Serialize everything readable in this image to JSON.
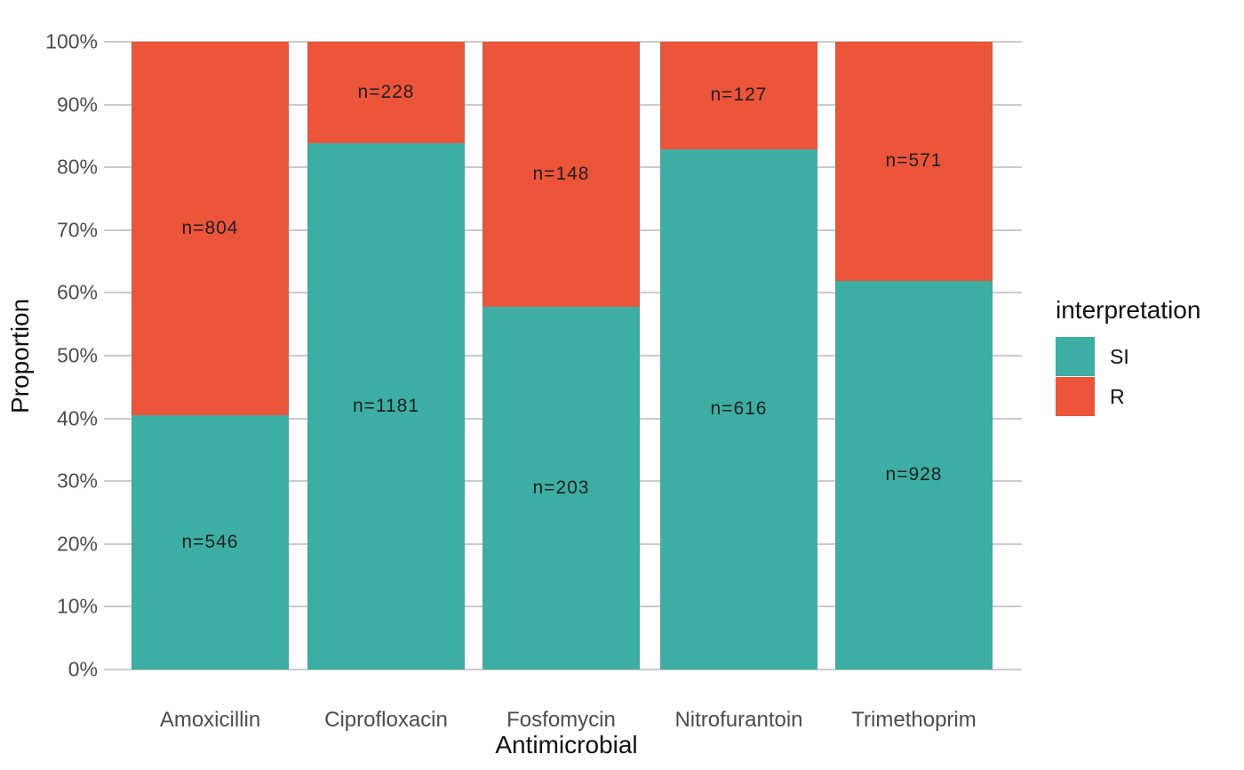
{
  "chart_data": {
    "type": "bar",
    "subtype": "stacked-percent",
    "title": "",
    "xlabel": "Antimicrobial",
    "ylabel": "Proportion",
    "categories": [
      "Amoxicillin",
      "Ciprofloxacin",
      "Fosfomycin",
      "Nitrofurantoin",
      "Trimethoprim"
    ],
    "series": [
      {
        "name": "SI",
        "color": "#3CAEA3",
        "values": [
          546,
          1181,
          203,
          616,
          928
        ]
      },
      {
        "name": "R",
        "color": "#ED553B",
        "values": [
          804,
          228,
          148,
          127,
          571
        ]
      }
    ],
    "si_percent_of_total": [
      40.44,
      83.82,
      57.83,
      82.91,
      61.91
    ],
    "bar_label_format": "n={value}",
    "bar_labels_si": [
      "n=546",
      "n=1181",
      "n=203",
      "n=616",
      "n=928"
    ],
    "bar_labels_r": [
      "n=804",
      "n=228",
      "n=148",
      "n=127",
      "n=571"
    ],
    "y_ticks": [
      "0%",
      "10%",
      "20%",
      "30%",
      "40%",
      "50%",
      "60%",
      "70%",
      "80%",
      "90%",
      "100%"
    ],
    "ylim": [
      0,
      100
    ],
    "grid": "major-horizontal-only",
    "legend": {
      "title": "interpretation",
      "position": "right",
      "entries": [
        {
          "label": "SI",
          "color": "#3CAEA3"
        },
        {
          "label": "R",
          "color": "#ED553B"
        }
      ]
    },
    "colors": {
      "background": "#FFFFFF",
      "gridline": "#CBCBCB",
      "tick_label": "#4D4D4D",
      "axis_title": "#111111",
      "bar_label": "#1F1F1F"
    }
  }
}
